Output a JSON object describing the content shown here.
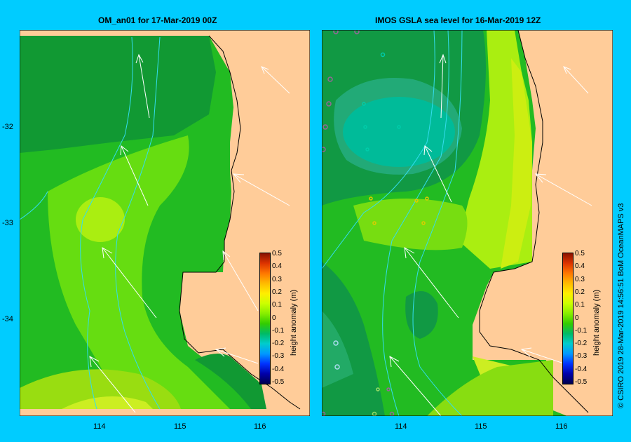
{
  "panels": [
    {
      "title": "OM_an01  for 17-Mar-2019 00Z"
    },
    {
      "title": "IMOS GSLA sea level  for 16-Mar-2019 12Z"
    }
  ],
  "axes": {
    "lat_ticks": [
      "-32",
      "-33",
      "-34"
    ],
    "lon_ticks": [
      "114",
      "115",
      "116"
    ]
  },
  "colorbar": {
    "title": "height anomaly (m)",
    "ticks": [
      "0.5",
      "0.4",
      "0.3",
      "0.2",
      "0.1",
      "0",
      "-0.1",
      "-0.2",
      "-0.3",
      "-0.4",
      "-0.5"
    ],
    "colors": [
      "#00004d",
      "#0000aa",
      "#0033ff",
      "#0099ff",
      "#00cccc",
      "#00bb66",
      "#33cc00",
      "#88ee00",
      "#ccff00",
      "#ffee00",
      "#ffbb00",
      "#ff7700",
      "#dd3300",
      "#881100"
    ]
  },
  "credit": "© CSIRO 2019   28-Mar-2019 14:56:51 BoM OceanMAPS v3",
  "colors": {
    "background": "#00ccff",
    "land": "#ffcc99",
    "contour_line": "#33ddee"
  }
}
